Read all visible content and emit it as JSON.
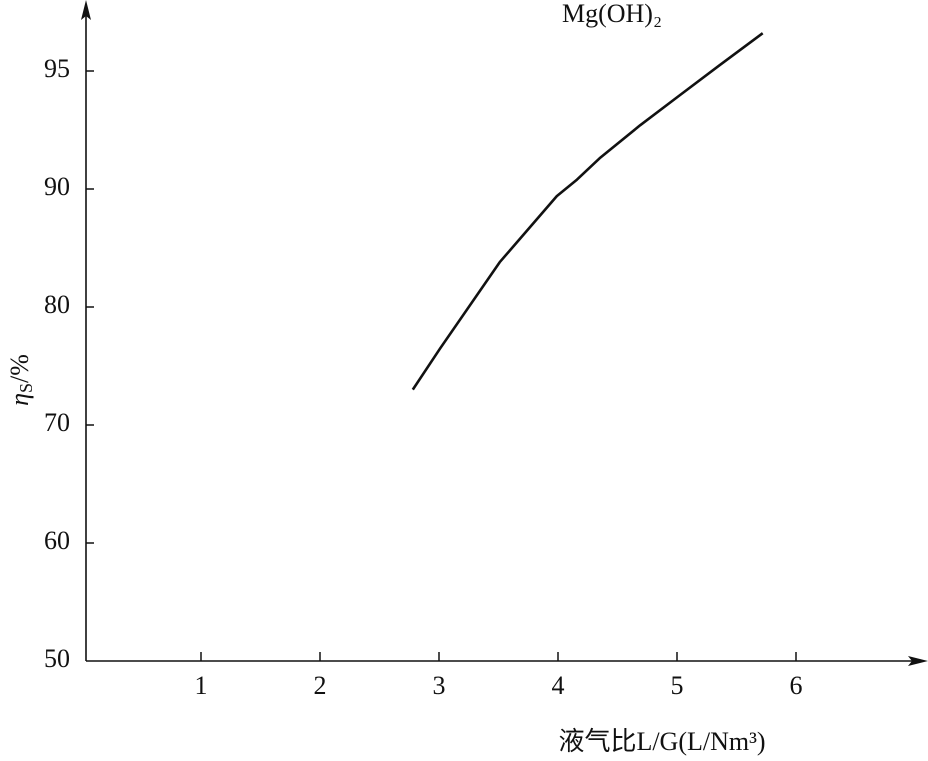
{
  "chart_data": {
    "type": "line",
    "annotation": "Mg(OH)₂",
    "x_label": "液气比L/G(L/Nm³)",
    "y_label": {
      "symbol": "η",
      "subscript": "S",
      "unit": "/%"
    },
    "x": [
      2.78,
      3.01,
      3.51,
      3.99,
      4.16,
      4.35,
      4.69,
      5.03,
      5.36,
      5.72
    ],
    "series": [
      {
        "color": "#111111",
        "values": [
          73,
          76.5,
          83.8,
          89.4,
          90.4,
          91.3,
          92.7,
          94.0,
          95.25,
          96.6
        ]
      }
    ],
    "xlim": [
      0,
      7
    ],
    "xticks": [
      1,
      2,
      3,
      4,
      5,
      6
    ],
    "ylim": [
      50,
      97.5
    ],
    "yticks": [
      50,
      60,
      70,
      80,
      90,
      95
    ],
    "grid": false
  }
}
